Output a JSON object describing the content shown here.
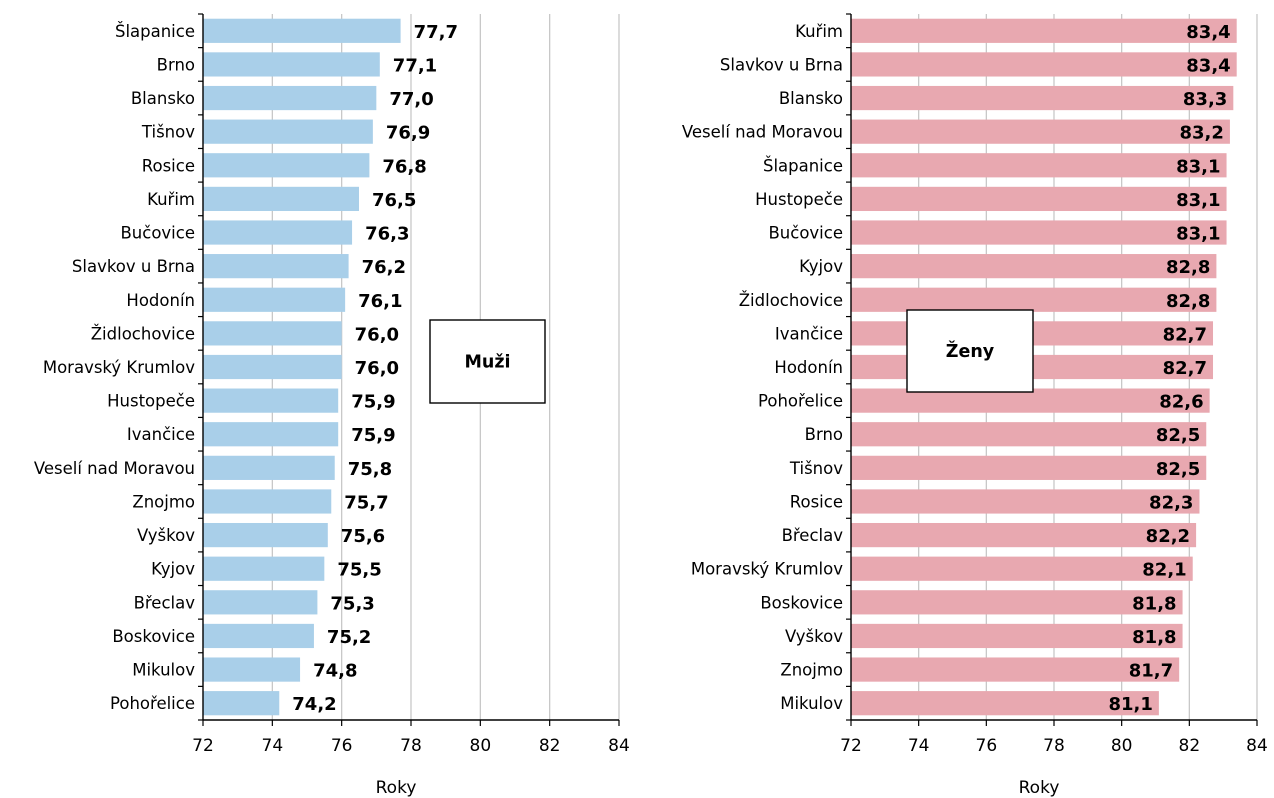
{
  "chart_data": [
    {
      "type": "bar",
      "orientation": "horizontal",
      "panel_label": "Muži",
      "xlabel": "Roky",
      "xlim": [
        72,
        84
      ],
      "xticks": [
        "72",
        "74",
        "76",
        "78",
        "80",
        "82",
        "84"
      ],
      "grid": "vertical",
      "bar_color": "#a9cfe9",
      "categories": [
        "Šlapanice",
        "Brno",
        "Blansko",
        "Tišnov",
        "Rosice",
        "Kuřim",
        "Bučovice",
        "Slavkov u Brna",
        "Hodonín",
        "Židlochovice",
        "Moravský Krumlov",
        "Hustopeče",
        "Ivančice",
        "Veselí nad Moravou",
        "Znojmo",
        "Vyškov",
        "Kyjov",
        "Břeclav",
        "Boskovice",
        "Mikulov",
        "Pohořelice"
      ],
      "values": [
        77.7,
        77.1,
        77.0,
        76.9,
        76.8,
        76.5,
        76.3,
        76.2,
        76.1,
        76.0,
        76.0,
        75.9,
        75.9,
        75.8,
        75.7,
        75.6,
        75.5,
        75.3,
        75.2,
        74.8,
        74.2
      ],
      "value_labels": [
        "77,7",
        "77,1",
        "77,0",
        "76,9",
        "76,8",
        "76,5",
        "76,3",
        "76,2",
        "76,1",
        "76,0",
        "76,0",
        "75,9",
        "75,9",
        "75,8",
        "75,7",
        "75,6",
        "75,5",
        "75,3",
        "75,2",
        "74,8",
        "74,2"
      ]
    },
    {
      "type": "bar",
      "orientation": "horizontal",
      "panel_label": "Ženy",
      "xlabel": "Roky",
      "xlim": [
        72,
        84
      ],
      "xticks": [
        "72",
        "74",
        "76",
        "78",
        "80",
        "82",
        "84"
      ],
      "grid": "vertical",
      "bar_color": "#e8a8b0",
      "categories": [
        "Kuřim",
        "Slavkov u Brna",
        "Blansko",
        "Veselí nad Moravou",
        "Šlapanice",
        "Hustopeče",
        "Bučovice",
        "Kyjov",
        "Židlochovice",
        "Ivančice",
        "Hodonín",
        "Pohořelice",
        "Brno",
        "Tišnov",
        "Rosice",
        "Břeclav",
        "Moravský Krumlov",
        "Boskovice",
        "Vyškov",
        "Znojmo",
        "Mikulov"
      ],
      "values": [
        83.4,
        83.4,
        83.3,
        83.2,
        83.1,
        83.1,
        83.1,
        82.8,
        82.8,
        82.7,
        82.7,
        82.6,
        82.5,
        82.5,
        82.3,
        82.2,
        82.1,
        81.8,
        81.8,
        81.7,
        81.1
      ],
      "value_labels": [
        "83,4",
        "83,4",
        "83,3",
        "83,2",
        "83,1",
        "83,1",
        "83,1",
        "82,8",
        "82,8",
        "82,7",
        "82,7",
        "82,6",
        "82,5",
        "82,5",
        "82,3",
        "82,2",
        "82,1",
        "81,8",
        "81,8",
        "81,7",
        "81,1"
      ]
    }
  ]
}
